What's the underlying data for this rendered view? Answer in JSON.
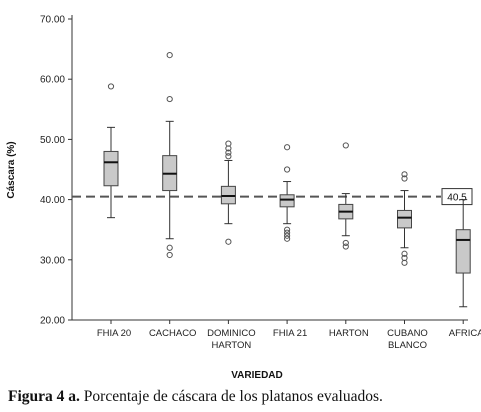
{
  "chart_data": {
    "type": "box",
    "ylabel": "Cáscara (%)",
    "xlabel": "VARIEDAD",
    "ylim": [
      20,
      70
    ],
    "yticks": [
      "20.00",
      "30.00",
      "40.00",
      "50.00",
      "60.00",
      "70.00"
    ],
    "reference_line": {
      "value": 40.5,
      "label": "40.5"
    },
    "categories": [
      {
        "label": [
          "FHIA 20"
        ],
        "min": 37,
        "q1": 42.3,
        "median": 46.2,
        "q3": 48,
        "max": 52,
        "outliers": [
          58.8
        ]
      },
      {
        "label": [
          "CACHACO"
        ],
        "min": 33.5,
        "q1": 41.5,
        "median": 44.3,
        "q3": 47.3,
        "max": 53,
        "outliers": [
          64,
          56.7,
          32,
          30.8
        ]
      },
      {
        "label": [
          "DOMINICO",
          "HARTON"
        ],
        "min": 36,
        "q1": 39.3,
        "median": 40.6,
        "q3": 42.2,
        "max": 46.5,
        "outliers": [
          49.3,
          48.5,
          47.8,
          47.2,
          33
        ]
      },
      {
        "label": [
          "FHIA 21"
        ],
        "min": 36,
        "q1": 38.8,
        "median": 40,
        "q3": 40.8,
        "max": 43,
        "outliers": [
          48.7,
          45,
          35,
          34.5,
          34,
          33.5
        ]
      },
      {
        "label": [
          "HARTON"
        ],
        "min": 34,
        "q1": 36.8,
        "median": 38,
        "q3": 39.2,
        "max": 41,
        "outliers": [
          49,
          32.8,
          32.2
        ]
      },
      {
        "label": [
          "CUBANO",
          "BLANCO"
        ],
        "min": 32,
        "q1": 35.3,
        "median": 37,
        "q3": 38.2,
        "max": 41.5,
        "outliers": [
          44.2,
          43.5,
          31,
          30.3,
          29.5
        ]
      },
      {
        "label": [
          "AFRICA"
        ],
        "min": 22.2,
        "q1": 27.8,
        "median": 33.3,
        "q3": 35,
        "max": 40,
        "outliers": []
      }
    ]
  },
  "caption": {
    "prefix": "Figura 4 a.",
    "text": " Porcentaje de cáscara de los platanos evaluados."
  }
}
